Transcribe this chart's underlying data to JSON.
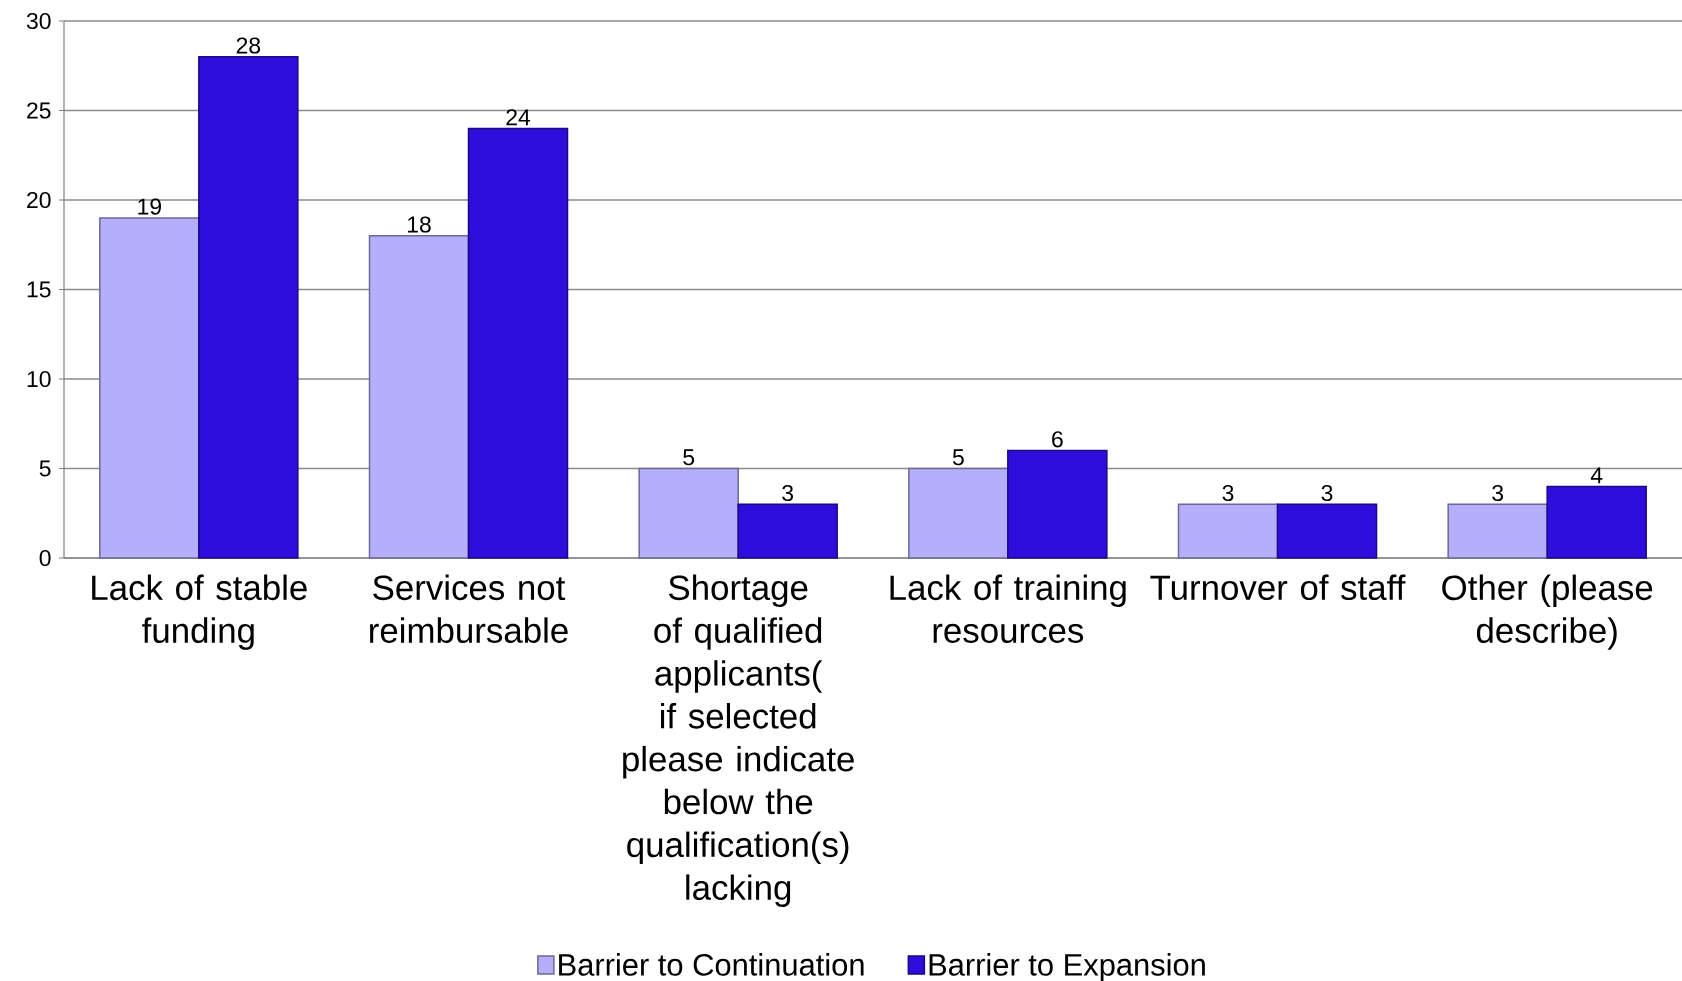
{
  "chart_data": {
    "type": "bar",
    "categories": [
      "Lack of stable funding",
      "Services not reimbursable",
      "Shortage of qualified applicants( if selected please indicate below the qualification(s) lacking",
      "Lack of training resources",
      "Turnover of staff",
      "Other (please describe)"
    ],
    "series": [
      {
        "name": "Barrier to Continuation",
        "color": "#b4aefb",
        "values": [
          19,
          18,
          5,
          5,
          3,
          3
        ]
      },
      {
        "name": "Barrier to Expansion",
        "color": "#2e0edc",
        "values": [
          28,
          24,
          3,
          6,
          3,
          4
        ]
      }
    ],
    "ylim": [
      0,
      30
    ],
    "yticks": [
      0,
      5,
      10,
      15,
      20,
      25,
      30
    ],
    "grid": "y",
    "legend": "bottom",
    "data_labels": true
  }
}
